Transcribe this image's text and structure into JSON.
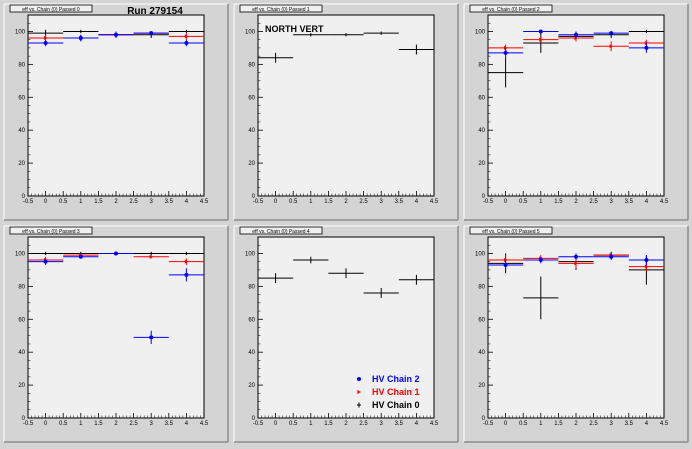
{
  "canvas_title": "Run 279154",
  "chart_data": [
    {
      "type": "scatter",
      "title": "eff vs. Chain (0) Passed 0",
      "annotation": "",
      "xlim": [
        -0.5,
        4.5
      ],
      "ylim": [
        0,
        110
      ],
      "x_ticks": [
        "-0.5",
        "0",
        "0.5",
        "1",
        "1.5",
        "2",
        "2.5",
        "3",
        "3.5",
        "4",
        "4.5"
      ],
      "y_ticks": [
        "0",
        "20",
        "40",
        "60",
        "80",
        "100"
      ],
      "grid": false,
      "series": [
        {
          "color": "#000000",
          "marker": "cross",
          "points": [
            {
              "x": 0,
              "y": 99,
              "yerr": 2
            },
            {
              "x": 1,
              "y": 100,
              "yerr": 1
            },
            {
              "x": 2,
              "y": 98,
              "yerr": 2
            },
            {
              "x": 3,
              "y": 98,
              "yerr": 2
            },
            {
              "x": 4,
              "y": 100,
              "yerr": 1
            }
          ]
        },
        {
          "color": "#ff0000",
          "marker": "triangle",
          "points": [
            {
              "x": 0,
              "y": 96,
              "yerr": 2
            },
            {
              "x": 1,
              "y": 96,
              "yerr": 2
            },
            {
              "x": 2,
              "y": 98,
              "yerr": 2
            },
            {
              "x": 3,
              "y": 99,
              "yerr": 1
            },
            {
              "x": 4,
              "y": 97,
              "yerr": 2
            }
          ]
        },
        {
          "color": "#0000ff",
          "marker": "circle",
          "points": [
            {
              "x": 0,
              "y": 93,
              "yerr": 2
            },
            {
              "x": 1,
              "y": 96,
              "yerr": 2
            },
            {
              "x": 2,
              "y": 98,
              "yerr": 2
            },
            {
              "x": 3,
              "y": 99,
              "yerr": 1
            },
            {
              "x": 4,
              "y": 93,
              "yerr": 2
            }
          ]
        }
      ]
    },
    {
      "type": "scatter",
      "title": "eff vs. Chain (0) Passed 1",
      "annotation": "NORTH VERT",
      "xlim": [
        -0.5,
        4.5
      ],
      "ylim": [
        0,
        110
      ],
      "x_ticks": [
        "-0.5",
        "0",
        "0.5",
        "1",
        "1.5",
        "2",
        "2.5",
        "3",
        "3.5",
        "4",
        "4.5"
      ],
      "y_ticks": [
        "0",
        "20",
        "40",
        "60",
        "80",
        "100"
      ],
      "grid": false,
      "series": [
        {
          "color": "#000000",
          "marker": "cross",
          "points": [
            {
              "x": 0,
              "y": 84,
              "yerr": 3
            },
            {
              "x": 1,
              "y": 98,
              "yerr": 1
            },
            {
              "x": 2,
              "y": 98,
              "yerr": 1
            },
            {
              "x": 3,
              "y": 99,
              "yerr": 1
            },
            {
              "x": 4,
              "y": 89,
              "yerr": 3
            }
          ]
        }
      ]
    },
    {
      "type": "scatter",
      "title": "eff vs. Chain (0) Passed 2",
      "annotation": "",
      "xlim": [
        -0.5,
        4.5
      ],
      "ylim": [
        0,
        110
      ],
      "x_ticks": [
        "-0.5",
        "0",
        "0.5",
        "1",
        "1.5",
        "2",
        "2.5",
        "3",
        "3.5",
        "4",
        "4.5"
      ],
      "y_ticks": [
        "0",
        "20",
        "40",
        "60",
        "80",
        "100"
      ],
      "grid": false,
      "series": [
        {
          "color": "#000000",
          "marker": "cross",
          "points": [
            {
              "x": 0,
              "y": 75,
              "yerr": 9
            },
            {
              "x": 1,
              "y": 93,
              "yerr": 6
            },
            {
              "x": 2,
              "y": 97,
              "yerr": 3
            },
            {
              "x": 3,
              "y": 98,
              "yerr": 2
            },
            {
              "x": 4,
              "y": 100,
              "yerr": 1
            }
          ]
        },
        {
          "color": "#ff0000",
          "marker": "triangle",
          "points": [
            {
              "x": 0,
              "y": 90,
              "yerr": 2
            },
            {
              "x": 1,
              "y": 95,
              "yerr": 2
            },
            {
              "x": 2,
              "y": 96,
              "yerr": 2
            },
            {
              "x": 3,
              "y": 91,
              "yerr": 3
            },
            {
              "x": 4,
              "y": 93,
              "yerr": 2
            }
          ]
        },
        {
          "color": "#0000ff",
          "marker": "circle",
          "points": [
            {
              "x": 0,
              "y": 87,
              "yerr": 3
            },
            {
              "x": 1,
              "y": 100,
              "yerr": 1
            },
            {
              "x": 2,
              "y": 98,
              "yerr": 2
            },
            {
              "x": 3,
              "y": 99,
              "yerr": 1
            },
            {
              "x": 4,
              "y": 90,
              "yerr": 3
            }
          ]
        }
      ]
    },
    {
      "type": "scatter",
      "title": "eff vs. Chain (0) Passed 3",
      "annotation": "",
      "xlim": [
        -0.5,
        4.5
      ],
      "ylim": [
        0,
        110
      ],
      "x_ticks": [
        "-0.5",
        "0",
        "0.5",
        "1",
        "1.5",
        "2",
        "2.5",
        "3",
        "3.5",
        "4",
        "4.5"
      ],
      "y_ticks": [
        "0",
        "20",
        "40",
        "60",
        "80",
        "100"
      ],
      "grid": false,
      "series": [
        {
          "color": "#000000",
          "marker": "cross",
          "points": [
            {
              "x": 0,
              "y": 100,
              "yerr": 1
            },
            {
              "x": 1,
              "y": 100,
              "yerr": 1
            },
            {
              "x": 2,
              "y": 100,
              "yerr": 1
            },
            {
              "x": 3,
              "y": 100,
              "yerr": 1
            },
            {
              "x": 4,
              "y": 100,
              "yerr": 1
            }
          ]
        },
        {
          "color": "#ff0000",
          "marker": "triangle",
          "points": [
            {
              "x": 0,
              "y": 96,
              "yerr": 2
            },
            {
              "x": 1,
              "y": 99,
              "yerr": 1
            },
            {
              "x": 2,
              "y": 100,
              "yerr": 1
            },
            {
              "x": 3,
              "y": 98,
              "yerr": 1
            },
            {
              "x": 4,
              "y": 95,
              "yerr": 2
            }
          ]
        },
        {
          "color": "#0000ff",
          "marker": "circle",
          "points": [
            {
              "x": 0,
              "y": 95,
              "yerr": 2
            },
            {
              "x": 1,
              "y": 98,
              "yerr": 1
            },
            {
              "x": 2,
              "y": 100,
              "yerr": 1
            },
            {
              "x": 3,
              "y": 49,
              "yerr": 4
            },
            {
              "x": 4,
              "y": 87,
              "yerr": 4
            }
          ]
        }
      ]
    },
    {
      "type": "scatter",
      "title": "eff vs. Chain (0) Passed 4",
      "annotation": "",
      "xlim": [
        -0.5,
        4.5
      ],
      "ylim": [
        0,
        110
      ],
      "x_ticks": [
        "-0.5",
        "0",
        "0.5",
        "1",
        "1.5",
        "2",
        "2.5",
        "3",
        "3.5",
        "4",
        "4.5"
      ],
      "y_ticks": [
        "0",
        "20",
        "40",
        "60",
        "80",
        "100"
      ],
      "grid": false,
      "legend": [
        {
          "label": "HV Chain 2",
          "color": "#0000ff",
          "marker": "circle"
        },
        {
          "label": "HV Chain 1",
          "color": "#ff0000",
          "marker": "triangle"
        },
        {
          "label": "HV Chain 0",
          "color": "#000000",
          "marker": "cross"
        }
      ],
      "series": [
        {
          "color": "#000000",
          "marker": "cross",
          "points": [
            {
              "x": 0,
              "y": 85,
              "yerr": 3
            },
            {
              "x": 1,
              "y": 96,
              "yerr": 2
            },
            {
              "x": 2,
              "y": 88,
              "yerr": 3
            },
            {
              "x": 3,
              "y": 76,
              "yerr": 3
            },
            {
              "x": 4,
              "y": 84,
              "yerr": 3
            }
          ]
        }
      ]
    },
    {
      "type": "scatter",
      "title": "eff vs. Chain (0) Passed 5",
      "annotation": "",
      "xlim": [
        -0.5,
        4.5
      ],
      "ylim": [
        0,
        110
      ],
      "x_ticks": [
        "-0.5",
        "0",
        "0.5",
        "1",
        "1.5",
        "2",
        "2.5",
        "3",
        "3.5",
        "4",
        "4.5"
      ],
      "y_ticks": [
        "0",
        "20",
        "40",
        "60",
        "80",
        "100"
      ],
      "grid": false,
      "series": [
        {
          "color": "#000000",
          "marker": "cross",
          "points": [
            {
              "x": 0,
              "y": 94,
              "yerr": 6
            },
            {
              "x": 1,
              "y": 73,
              "yerr": 13
            },
            {
              "x": 2,
              "y": 95,
              "yerr": 5
            },
            {
              "x": 3,
              "y": 99,
              "yerr": 2
            },
            {
              "x": 4,
              "y": 90,
              "yerr": 9
            }
          ]
        },
        {
          "color": "#ff0000",
          "marker": "triangle",
          "points": [
            {
              "x": 0,
              "y": 96,
              "yerr": 3
            },
            {
              "x": 1,
              "y": 97,
              "yerr": 2
            },
            {
              "x": 2,
              "y": 94,
              "yerr": 3
            },
            {
              "x": 3,
              "y": 99,
              "yerr": 1
            },
            {
              "x": 4,
              "y": 92,
              "yerr": 3
            }
          ]
        },
        {
          "color": "#0000ff",
          "marker": "circle",
          "points": [
            {
              "x": 0,
              "y": 93,
              "yerr": 3
            },
            {
              "x": 1,
              "y": 96,
              "yerr": 2
            },
            {
              "x": 2,
              "y": 98,
              "yerr": 2
            },
            {
              "x": 3,
              "y": 98,
              "yerr": 2
            },
            {
              "x": 4,
              "y": 96,
              "yerr": 3
            }
          ]
        }
      ]
    }
  ]
}
